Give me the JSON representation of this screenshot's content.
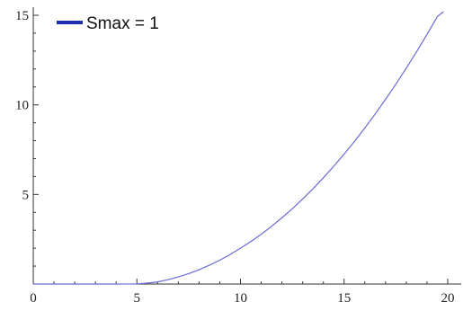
{
  "chart_data": {
    "type": "line",
    "title": "",
    "xlabel": "",
    "ylabel": "",
    "xlim": [
      0,
      20
    ],
    "ylim": [
      0,
      15.4
    ],
    "x_ticks": [
      0,
      5,
      10,
      15,
      20
    ],
    "x_tick_labels": [
      "0",
      "5",
      "10",
      "15",
      "20"
    ],
    "x_minor_step": 1,
    "y_ticks": [
      5,
      10,
      15
    ],
    "y_tick_labels": [
      "5",
      "10",
      "15"
    ],
    "y_minor_step": 1,
    "grid": false,
    "legend_position": "top-left",
    "series": [
      {
        "name": "Smax = 1",
        "color": "#6b6bd6",
        "legend_color": "#1f2fb0",
        "x": [
          0,
          1,
          2,
          3,
          4,
          5,
          5.5,
          6,
          6.5,
          7,
          7.5,
          8,
          8.5,
          9,
          9.5,
          10,
          10.5,
          11,
          11.5,
          12,
          12.5,
          13,
          13.5,
          14,
          14.5,
          15,
          15.5,
          16,
          16.5,
          17,
          17.5,
          18,
          18.5,
          19,
          19.5,
          19.8
        ],
        "y": [
          0,
          0,
          0,
          0,
          0,
          0.01,
          0.05,
          0.12,
          0.24,
          0.4,
          0.58,
          0.8,
          1.05,
          1.33,
          1.65,
          2.0,
          2.37,
          2.78,
          3.22,
          3.7,
          4.2,
          4.75,
          5.32,
          5.93,
          6.58,
          7.25,
          7.96,
          8.71,
          9.49,
          10.31,
          11.16,
          12.05,
          12.97,
          13.93,
          14.93,
          15.2
        ]
      }
    ]
  }
}
